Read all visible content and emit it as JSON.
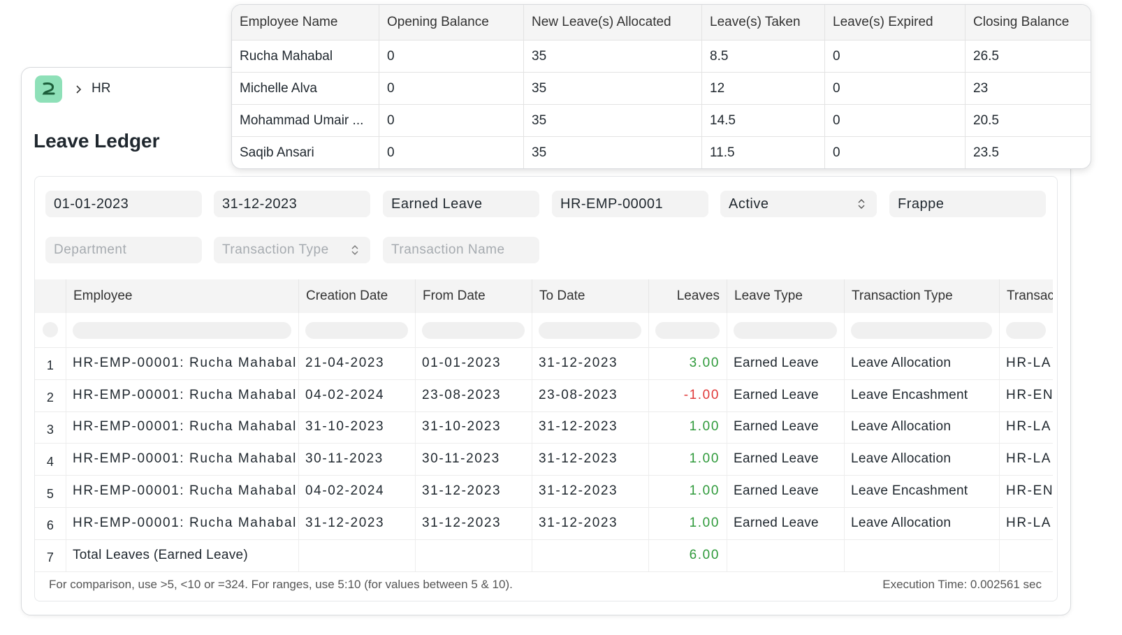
{
  "breadcrumb": "HR",
  "page_title": "Leave Ledger",
  "summary_table": {
    "columns": [
      "Employee Name",
      "Opening Balance",
      "New Leave(s) Allocated",
      "Leave(s) Taken",
      "Leave(s) Expired",
      "Closing Balance"
    ],
    "rows": [
      [
        "Rucha Mahabal",
        0,
        35,
        8.5,
        0,
        26.5
      ],
      [
        "Michelle Alva",
        0,
        35,
        12,
        0,
        23
      ],
      [
        "Mohammad Umair ...",
        0,
        35,
        14.5,
        0,
        20.5
      ],
      [
        "Saqib Ansari",
        0,
        35,
        11.5,
        0,
        23.5
      ]
    ]
  },
  "filters": {
    "values": [
      "01-01-2023",
      "31-12-2023",
      "Earned Leave",
      "HR-EMP-00001",
      "Active",
      "Frappe"
    ],
    "placeholders": [
      "Department",
      "Transaction Type",
      "Transaction Name"
    ]
  },
  "ledger_table": {
    "columns": [
      "Employee",
      "Creation Date",
      "From Date",
      "To Date",
      "Leaves",
      "Leave Type",
      "Transaction Type",
      "Transac"
    ],
    "rows": [
      [
        1,
        "HR-EMP-00001: Rucha Mahabal",
        "21-04-2023",
        "01-01-2023",
        "31-12-2023",
        "3.00",
        "Earned Leave",
        "Leave Allocation",
        "HR-LA"
      ],
      [
        2,
        "HR-EMP-00001: Rucha Mahabal",
        "04-02-2024",
        "23-08-2023",
        "23-08-2023",
        "-1.00",
        "Earned Leave",
        "Leave Encashment",
        "HR-EN"
      ],
      [
        3,
        "HR-EMP-00001: Rucha Mahabal",
        "31-10-2023",
        "31-10-2023",
        "31-12-2023",
        "1.00",
        "Earned Leave",
        "Leave Allocation",
        "HR-LA"
      ],
      [
        4,
        "HR-EMP-00001: Rucha Mahabal",
        "30-11-2023",
        "30-11-2023",
        "31-12-2023",
        "1.00",
        "Earned Leave",
        "Leave Allocation",
        "HR-LA"
      ],
      [
        5,
        "HR-EMP-00001: Rucha Mahabal",
        "04-02-2024",
        "31-12-2023",
        "31-12-2023",
        "1.00",
        "Earned Leave",
        "Leave Encashment",
        "HR-EN"
      ],
      [
        6,
        "HR-EMP-00001: Rucha Mahabal",
        "31-12-2023",
        "31-12-2023",
        "31-12-2023",
        "1.00",
        "Earned Leave",
        "Leave Allocation",
        "HR-LA"
      ],
      [
        7,
        "Total Leaves (Earned Leave)",
        null,
        null,
        null,
        "6.00",
        null,
        null,
        null
      ]
    ]
  },
  "footer": {
    "hint": "For comparison, use >5, <10 or =324. For ranges, use 5:10 (for values between 5 & 10).",
    "execution_time": "Execution Time: 0.002561 sec"
  }
}
